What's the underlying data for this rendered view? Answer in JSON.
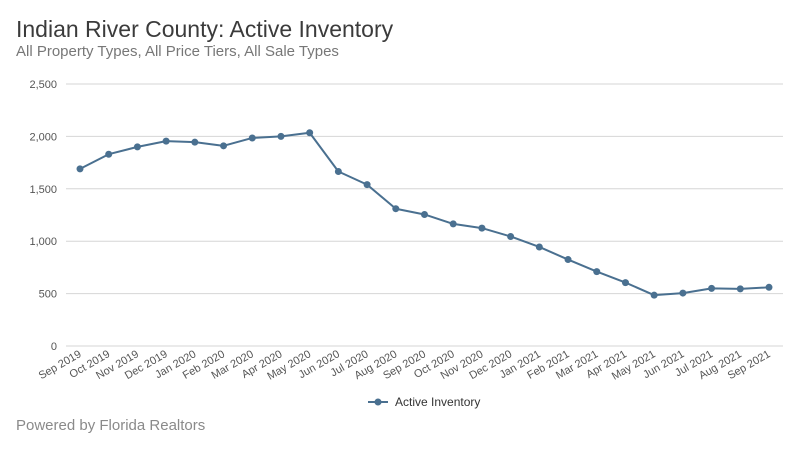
{
  "header": {
    "title": "Indian River County: Active Inventory",
    "subtitle": "All Property Types, All Price Tiers, All Sale Types"
  },
  "footer": {
    "text": "Powered by Florida Realtors"
  },
  "colors": {
    "series": "#4a7090",
    "grid": "#d6d6d6"
  },
  "chart_data": {
    "type": "line",
    "title": "Indian River County: Active Inventory",
    "subtitle": "All Property Types, All Price Tiers, All Sale Types",
    "xlabel": "",
    "ylabel": "",
    "ylim": [
      0,
      2500
    ],
    "yticks": [
      "0",
      "500",
      "1,000",
      "1,500",
      "2,000",
      "2,500"
    ],
    "ytick_values": [
      0,
      500,
      1000,
      1500,
      2000,
      2500
    ],
    "grid": true,
    "legend_position": "bottom-center",
    "categories": [
      "Sep 2019",
      "Oct 2019",
      "Nov 2019",
      "Dec 2019",
      "Jan 2020",
      "Feb 2020",
      "Mar 2020",
      "Apr 2020",
      "May 2020",
      "Jun 2020",
      "Jul 2020",
      "Aug 2020",
      "Sep 2020",
      "Oct 2020",
      "Nov 2020",
      "Dec 2020",
      "Jan 2021",
      "Feb 2021",
      "Mar 2021",
      "Apr 2021",
      "May 2021",
      "Jun 2021",
      "Jul 2021",
      "Aug 2021",
      "Sep 2021"
    ],
    "series": [
      {
        "name": "Active Inventory",
        "values": [
          1690,
          1830,
          1900,
          1955,
          1945,
          1910,
          1985,
          2000,
          2035,
          1665,
          1540,
          1310,
          1255,
          1165,
          1125,
          1045,
          945,
          825,
          710,
          605,
          485,
          505,
          550,
          545,
          560
        ]
      }
    ]
  }
}
